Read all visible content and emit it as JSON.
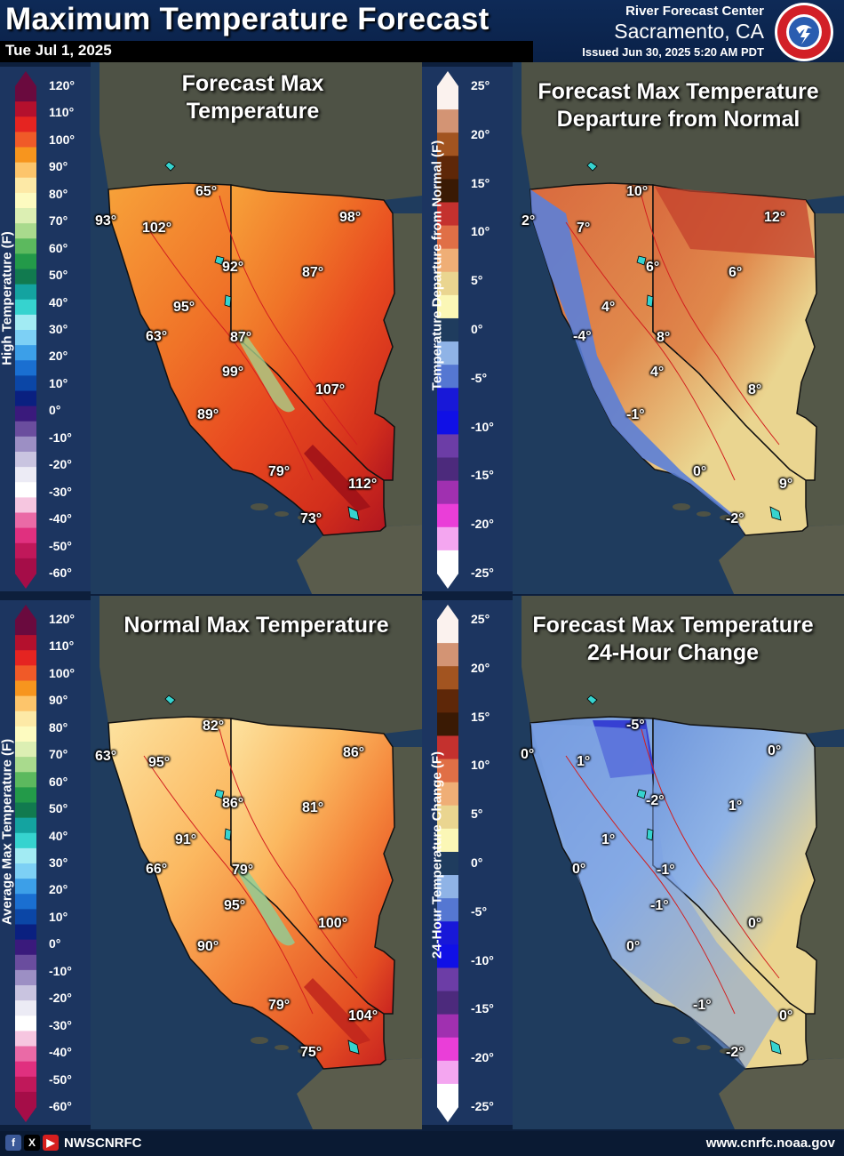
{
  "header": {
    "title": "Maximum Temperature Forecast",
    "date": "Tue Jul 1, 2025",
    "rfc_title": "River Forecast Center",
    "rfc_location": "Sacramento, CA",
    "issued": "Issued Jun 30, 2025 5:20 AM PDT"
  },
  "footer": {
    "handle": "NWSCNRFC",
    "website": "www.cnrfc.noaa.gov"
  },
  "temp_scale": {
    "ticks": [
      "120°",
      "110°",
      "100°",
      "90°",
      "80°",
      "70°",
      "60°",
      "50°",
      "40°",
      "30°",
      "20°",
      "10°",
      "0°",
      "-10°",
      "-20°",
      "-30°",
      "-40°",
      "-50°",
      "-60°"
    ],
    "colors": [
      "#6a0a3e",
      "#b4102d",
      "#e52421",
      "#f05a28",
      "#f7951e",
      "#fdc56b",
      "#fde9a6",
      "#fdfbc0",
      "#dcefb3",
      "#a9da8d",
      "#5cb95e",
      "#239a49",
      "#117a4f",
      "#14a3a0",
      "#36d3cf",
      "#a2ebf3",
      "#7dd0f5",
      "#3c9fe8",
      "#1a6fd1",
      "#0b46a6",
      "#0a2080",
      "#3a1a7c",
      "#6a4d9e",
      "#9c8fc4",
      "#c9c4e0",
      "#ecebf5",
      "#ffffff",
      "#f6c6e0",
      "#ea6aa6",
      "#e0307f",
      "#c0185a",
      "#a50d48"
    ]
  },
  "dep_scale": {
    "ticks": [
      "25°",
      "20°",
      "15°",
      "10°",
      "5°",
      "0°",
      "-5°",
      "-10°",
      "-15°",
      "-20°",
      "-25°"
    ],
    "colors": [
      "#fbf2ee",
      "#d39474",
      "#a25420",
      "#5e2708",
      "#3a1a04",
      "#c4312e",
      "#e06f46",
      "#efae76",
      "#ead590",
      "#fbf7b6",
      "#1f3c5e",
      "#8fb3e6",
      "#5577d2",
      "#1818d8",
      "#1010e6",
      "#6c3da6",
      "#4c2a7c",
      "#a030b0",
      "#ea3ed8",
      "#f4a6f0",
      "#ffffff"
    ]
  },
  "panels": {
    "forecast": {
      "title_line1": "Forecast Max",
      "title_line2": "Temperature",
      "labels": [
        {
          "text": "65°"
        },
        {
          "text": "93°"
        },
        {
          "text": "98°"
        },
        {
          "text": "102°"
        },
        {
          "text": "92°"
        },
        {
          "text": "87°"
        },
        {
          "text": "95°"
        },
        {
          "text": "63°"
        },
        {
          "text": "87°"
        },
        {
          "text": "99°"
        },
        {
          "text": "107°"
        },
        {
          "text": "89°"
        },
        {
          "text": "79°"
        },
        {
          "text": "112°"
        },
        {
          "text": "73°"
        }
      ]
    },
    "departure": {
      "title_line1": "Forecast Max Temperature",
      "title_line2": "Departure from Normal",
      "labels": [
        {
          "text": "10°"
        },
        {
          "text": "2°"
        },
        {
          "text": "7°"
        },
        {
          "text": "12°"
        },
        {
          "text": "6°"
        },
        {
          "text": "6°"
        },
        {
          "text": "4°"
        },
        {
          "text": "-4°"
        },
        {
          "text": "8°"
        },
        {
          "text": "4°"
        },
        {
          "text": "8°"
        },
        {
          "text": "-1°"
        },
        {
          "text": "0°"
        },
        {
          "text": "9°"
        },
        {
          "text": "-2°"
        }
      ]
    },
    "normal": {
      "title_line1": "Normal Max Temperature",
      "labels": [
        {
          "text": "82°"
        },
        {
          "text": "63°"
        },
        {
          "text": "95°"
        },
        {
          "text": "86°"
        },
        {
          "text": "86°"
        },
        {
          "text": "81°"
        },
        {
          "text": "91°"
        },
        {
          "text": "66°"
        },
        {
          "text": "79°"
        },
        {
          "text": "95°"
        },
        {
          "text": "100°"
        },
        {
          "text": "90°"
        },
        {
          "text": "79°"
        },
        {
          "text": "104°"
        },
        {
          "text": "75°"
        }
      ]
    },
    "change": {
      "title_line1": "Forecast Max Temperature",
      "title_line2": "24-Hour Change",
      "labels": [
        {
          "text": "-5°"
        },
        {
          "text": "0°"
        },
        {
          "text": "1°"
        },
        {
          "text": "0°"
        },
        {
          "text": "-2°"
        },
        {
          "text": "1°"
        },
        {
          "text": "1°"
        },
        {
          "text": "0°"
        },
        {
          "text": "-1°"
        },
        {
          "text": "-1°"
        },
        {
          "text": "0°"
        },
        {
          "text": "0°"
        },
        {
          "text": "-1°"
        },
        {
          "text": "0°"
        },
        {
          "text": "-2°"
        }
      ]
    }
  },
  "legend_labels": {
    "high": "High Temperature (F)",
    "departure": "Temperature Departure from Normal (F)",
    "average": "Average Max Temperature (F)",
    "change": "24-Hour Temperature Change (F)"
  },
  "colors": {
    "header_bg": "#0e2a57",
    "ocean": "#1f3c5e",
    "land": "#4e5245"
  }
}
